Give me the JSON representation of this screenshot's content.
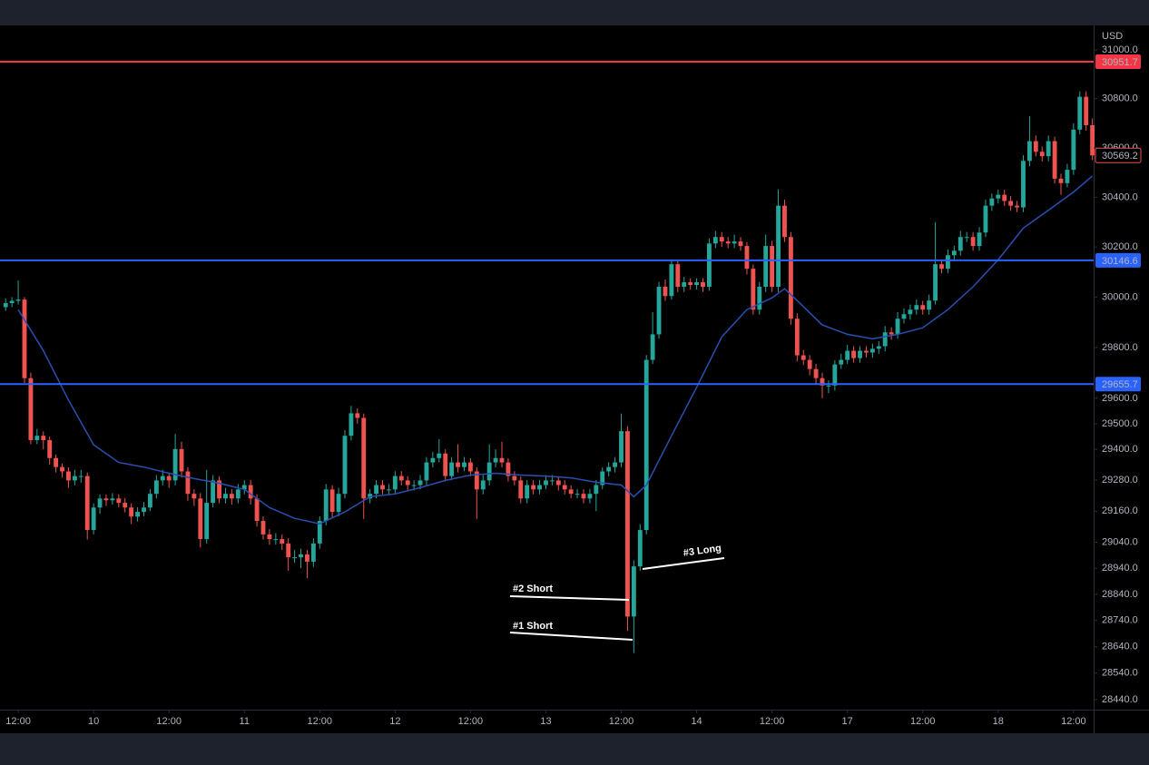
{
  "chart_data": {
    "type": "candlestick",
    "currency": "USD",
    "up_color": "#26a69a",
    "down_color": "#ef5350",
    "log_scale": true,
    "ylim": [
      28402,
      31101
    ],
    "yticks": [
      {
        "value": 31000,
        "label": "31000.0"
      },
      {
        "value": 30800,
        "label": "30800.0"
      },
      {
        "value": 30600,
        "label": "30600.0"
      },
      {
        "value": 30400,
        "label": "30400.0"
      },
      {
        "value": 30200,
        "label": "30200.0"
      },
      {
        "value": 30000,
        "label": "30000.0"
      },
      {
        "value": 29800,
        "label": "29800.0"
      },
      {
        "value": 29600,
        "label": "29600.0"
      },
      {
        "value": 29500,
        "label": "29500.0"
      },
      {
        "value": 29400,
        "label": "29400.0"
      },
      {
        "value": 29280,
        "label": "29280.0"
      },
      {
        "value": 29160,
        "label": "29160.0"
      },
      {
        "value": 29040,
        "label": "29040.0"
      },
      {
        "value": 28940,
        "label": "28940.0"
      },
      {
        "value": 28840,
        "label": "28840.0"
      },
      {
        "value": 28740,
        "label": "28740.0"
      },
      {
        "value": 28640,
        "label": "28640.0"
      },
      {
        "value": 28540,
        "label": "28540.0"
      },
      {
        "value": 28440,
        "label": "28440.0"
      }
    ],
    "xlim": [
      -2.9,
      171.2
    ],
    "xticks": [
      {
        "value": 0,
        "label": "12:00"
      },
      {
        "value": 12,
        "label": "10"
      },
      {
        "value": 24,
        "label": "12:00"
      },
      {
        "value": 36,
        "label": "11"
      },
      {
        "value": 48,
        "label": "12:00"
      },
      {
        "value": 60,
        "label": "12"
      },
      {
        "value": 72,
        "label": "12:00"
      },
      {
        "value": 84,
        "label": "13"
      },
      {
        "value": 96,
        "label": "12:00"
      },
      {
        "value": 108,
        "label": "14"
      },
      {
        "value": 120,
        "label": "12:00"
      },
      {
        "value": 132,
        "label": "17"
      },
      {
        "value": 144,
        "label": "12:00"
      },
      {
        "value": 156,
        "label": "18"
      },
      {
        "value": 168,
        "label": "12:00"
      }
    ],
    "x": [
      -2,
      -1,
      0,
      1,
      2,
      3,
      4,
      5,
      6,
      7,
      8,
      9,
      10,
      11,
      12,
      13,
      14,
      15,
      16,
      17,
      18,
      19,
      20,
      21,
      22,
      23,
      24,
      25,
      26,
      27,
      28,
      29,
      30,
      31,
      32,
      33,
      34,
      35,
      36,
      37,
      38,
      39,
      40,
      41,
      42,
      43,
      44,
      45,
      46,
      47,
      48,
      49,
      50,
      51,
      52,
      53,
      54,
      55,
      56,
      57,
      58,
      59,
      60,
      61,
      62,
      63,
      64,
      65,
      66,
      67,
      68,
      69,
      70,
      71,
      72,
      73,
      74,
      75,
      76,
      77,
      78,
      79,
      80,
      81,
      82,
      83,
      84,
      85,
      86,
      87,
      88,
      89,
      90,
      91,
      92,
      93,
      94,
      95,
      96,
      97,
      98,
      99,
      100,
      101,
      102,
      103,
      104,
      105,
      106,
      107,
      108,
      109,
      110,
      111,
      112,
      113,
      114,
      115,
      116,
      117,
      118,
      119,
      120,
      121,
      122,
      123,
      124,
      125,
      126,
      127,
      128,
      129,
      130,
      131,
      132,
      133,
      134,
      135,
      136,
      137,
      138,
      139,
      140,
      141,
      142,
      143,
      144,
      145,
      146,
      147,
      148,
      149,
      150,
      151,
      152,
      153,
      154,
      155,
      156,
      157,
      158,
      159,
      160,
      161,
      162,
      163,
      164,
      165,
      166,
      167,
      168,
      169,
      170,
      171
    ],
    "candles": [
      [
        29960,
        29995,
        29945,
        29976
      ],
      [
        29976,
        30000,
        29960,
        29985
      ],
      [
        29985,
        30066,
        29970,
        29990
      ],
      [
        29990,
        30000,
        29660,
        29679
      ],
      [
        29679,
        29700,
        29420,
        29436
      ],
      [
        29436,
        29480,
        29420,
        29453
      ],
      [
        29453,
        29470,
        29400,
        29436
      ],
      [
        29436,
        29450,
        29340,
        29366
      ],
      [
        29366,
        29380,
        29310,
        29331
      ],
      [
        29331,
        29345,
        29290,
        29314
      ],
      [
        29314,
        29330,
        29250,
        29279
      ],
      [
        29279,
        29320,
        29260,
        29296
      ],
      [
        29296,
        29320,
        29270,
        29296
      ],
      [
        29296,
        29310,
        29050,
        29087
      ],
      [
        29087,
        29190,
        29070,
        29174
      ],
      [
        29174,
        29225,
        29150,
        29209
      ],
      [
        29209,
        29225,
        29180,
        29202
      ],
      [
        29202,
        29230,
        29185,
        29209
      ],
      [
        29209,
        29225,
        29175,
        29192
      ],
      [
        29192,
        29210,
        29155,
        29174
      ],
      [
        29174,
        29190,
        29110,
        29139
      ],
      [
        29139,
        29175,
        29120,
        29157
      ],
      [
        29157,
        29195,
        29140,
        29174
      ],
      [
        29174,
        29245,
        29160,
        29227
      ],
      [
        29227,
        29300,
        29210,
        29279
      ],
      [
        29279,
        29320,
        29260,
        29296
      ],
      [
        29296,
        29310,
        29250,
        29279
      ],
      [
        29279,
        29460,
        29260,
        29401
      ],
      [
        29401,
        29430,
        29290,
        29314
      ],
      [
        29314,
        29330,
        29200,
        29227
      ],
      [
        29227,
        29245,
        29180,
        29209
      ],
      [
        29209,
        29230,
        29020,
        29052
      ],
      [
        29052,
        29320,
        29035,
        29192
      ],
      [
        29192,
        29300,
        29175,
        29279
      ],
      [
        29279,
        29295,
        29190,
        29209
      ],
      [
        29209,
        29250,
        29190,
        29227
      ],
      [
        29227,
        29245,
        29185,
        29209
      ],
      [
        29209,
        29265,
        29190,
        29244
      ],
      [
        29244,
        29280,
        29225,
        29261
      ],
      [
        29261,
        29280,
        29185,
        29209
      ],
      [
        29209,
        29225,
        29100,
        29122
      ],
      [
        29122,
        29140,
        29050,
        29070
      ],
      [
        29070,
        29090,
        29030,
        29052
      ],
      [
        29052,
        29075,
        29030,
        29052
      ],
      [
        29052,
        29070,
        29010,
        29035
      ],
      [
        29035,
        29055,
        28930,
        28982
      ],
      [
        28982,
        29010,
        28960,
        28982
      ],
      [
        28982,
        29015,
        28940,
        28993
      ],
      [
        28993,
        29010,
        28902,
        28965
      ],
      [
        28965,
        29055,
        28945,
        29035
      ],
      [
        29035,
        29140,
        29015,
        29122
      ],
      [
        29122,
        29265,
        29105,
        29244
      ],
      [
        29244,
        29260,
        29135,
        29157
      ],
      [
        29157,
        29250,
        29140,
        29227
      ],
      [
        29227,
        29475,
        29210,
        29453
      ],
      [
        29453,
        29570,
        29435,
        29541
      ],
      [
        29541,
        29560,
        29500,
        29523
      ],
      [
        29523,
        29540,
        29130,
        29209
      ],
      [
        29209,
        29245,
        29190,
        29227
      ],
      [
        29227,
        29280,
        29210,
        29261
      ],
      [
        29261,
        29280,
        29225,
        29244
      ],
      [
        29244,
        29265,
        29225,
        29244
      ],
      [
        29244,
        29315,
        29225,
        29296
      ],
      [
        29296,
        29315,
        29260,
        29279
      ],
      [
        29279,
        29295,
        29240,
        29261
      ],
      [
        29261,
        29280,
        29240,
        29261
      ],
      [
        29261,
        29300,
        29245,
        29279
      ],
      [
        29279,
        29370,
        29260,
        29349
      ],
      [
        29349,
        29390,
        29330,
        29366
      ],
      [
        29366,
        29440,
        29350,
        29384
      ],
      [
        29384,
        29400,
        29275,
        29296
      ],
      [
        29296,
        29370,
        29280,
        29349
      ],
      [
        29349,
        29420,
        29310,
        29331
      ],
      [
        29331,
        29370,
        29315,
        29349
      ],
      [
        29349,
        29365,
        29295,
        29314
      ],
      [
        29314,
        29330,
        29130,
        29244
      ],
      [
        29244,
        29300,
        29225,
        29279
      ],
      [
        29279,
        29420,
        29260,
        29349
      ],
      [
        29349,
        29400,
        29330,
        29366
      ],
      [
        29366,
        29430,
        29330,
        29349
      ],
      [
        29349,
        29365,
        29275,
        29296
      ],
      [
        29296,
        29315,
        29260,
        29279
      ],
      [
        29279,
        29295,
        29190,
        29209
      ],
      [
        29209,
        29280,
        29190,
        29261
      ],
      [
        29261,
        29280,
        29225,
        29244
      ],
      [
        29244,
        29280,
        29225,
        29261
      ],
      [
        29261,
        29300,
        29245,
        29279
      ],
      [
        29279,
        29300,
        29260,
        29279
      ],
      [
        29279,
        29295,
        29240,
        29261
      ],
      [
        29261,
        29280,
        29225,
        29244
      ],
      [
        29244,
        29260,
        29210,
        29227
      ],
      [
        29227,
        29245,
        29210,
        29227
      ],
      [
        29227,
        29245,
        29190,
        29209
      ],
      [
        29209,
        29245,
        29190,
        29227
      ],
      [
        29227,
        29280,
        29160,
        29261
      ],
      [
        29261,
        29330,
        29245,
        29314
      ],
      [
        29314,
        29350,
        29295,
        29331
      ],
      [
        29331,
        29370,
        29310,
        29349
      ],
      [
        29349,
        29540,
        29330,
        29471
      ],
      [
        29471,
        29490,
        28700,
        28755
      ],
      [
        28755,
        28970,
        28616,
        28947
      ],
      [
        28947,
        29110,
        28930,
        29087
      ],
      [
        29087,
        29770,
        29070,
        29751
      ],
      [
        29751,
        29940,
        29735,
        29852
      ],
      [
        29852,
        30060,
        29835,
        30041
      ],
      [
        30041,
        30070,
        29985,
        30004
      ],
      [
        30004,
        30150,
        29990,
        30131
      ],
      [
        30131,
        30150,
        30020,
        30041
      ],
      [
        30041,
        30080,
        30020,
        30059
      ],
      [
        30059,
        30075,
        30030,
        30048
      ],
      [
        30048,
        30075,
        30030,
        30059
      ],
      [
        30059,
        30075,
        30020,
        30041
      ],
      [
        30041,
        30235,
        30025,
        30214
      ],
      [
        30214,
        30265,
        30195,
        30240
      ],
      [
        30240,
        30260,
        30200,
        30222
      ],
      [
        30222,
        30240,
        30195,
        30214
      ],
      [
        30214,
        30250,
        30195,
        30222
      ],
      [
        30222,
        30240,
        30185,
        30204
      ],
      [
        30204,
        30220,
        30090,
        30113
      ],
      [
        30113,
        30130,
        29930,
        29950
      ],
      [
        29950,
        30060,
        29930,
        30041
      ],
      [
        30041,
        30250,
        30020,
        30204
      ],
      [
        30204,
        30225,
        30020,
        30041
      ],
      [
        30041,
        30432,
        30020,
        30366
      ],
      [
        30366,
        30390,
        30220,
        30240
      ],
      [
        30240,
        30260,
        29890,
        29914
      ],
      [
        29914,
        29935,
        29745,
        29769
      ],
      [
        29769,
        29790,
        29730,
        29751
      ],
      [
        29751,
        29770,
        29690,
        29715
      ],
      [
        29715,
        29735,
        29655,
        29679
      ],
      [
        29679,
        29700,
        29600,
        29650
      ],
      [
        29650,
        29670,
        29620,
        29650
      ],
      [
        29650,
        29750,
        29630,
        29733
      ],
      [
        29733,
        29775,
        29715,
        29751
      ],
      [
        29751,
        29810,
        29735,
        29787
      ],
      [
        29787,
        29805,
        29740,
        29758
      ],
      [
        29758,
        29805,
        29740,
        29787
      ],
      [
        29787,
        29805,
        29760,
        29780
      ],
      [
        29780,
        29815,
        29760,
        29795
      ],
      [
        29795,
        29825,
        29775,
        29805
      ],
      [
        29805,
        29885,
        29785,
        29860
      ],
      [
        29860,
        29880,
        29830,
        29852
      ],
      [
        29852,
        29940,
        29835,
        29914
      ],
      [
        29914,
        29955,
        29895,
        29932
      ],
      [
        29932,
        29970,
        29910,
        29950
      ],
      [
        29950,
        29990,
        29930,
        29968
      ],
      [
        29968,
        29985,
        29930,
        29950
      ],
      [
        29950,
        30010,
        29930,
        29986
      ],
      [
        29986,
        30300,
        29970,
        30131
      ],
      [
        30131,
        30150,
        30095,
        30113
      ],
      [
        30113,
        30190,
        30095,
        30167
      ],
      [
        30167,
        30205,
        30150,
        30185
      ],
      [
        30185,
        30265,
        30165,
        30240
      ],
      [
        30240,
        30260,
        30220,
        30240
      ],
      [
        30240,
        30260,
        30185,
        30204
      ],
      [
        30204,
        30280,
        30185,
        30258
      ],
      [
        30258,
        30390,
        30240,
        30366
      ],
      [
        30366,
        30415,
        30345,
        30395
      ],
      [
        30395,
        30430,
        30375,
        30410
      ],
      [
        30410,
        30430,
        30365,
        30385
      ],
      [
        30385,
        30405,
        30345,
        30366
      ],
      [
        30366,
        30385,
        30340,
        30359
      ],
      [
        30359,
        30570,
        30340,
        30547
      ],
      [
        30547,
        30729,
        30525,
        30627
      ],
      [
        30627,
        30650,
        30565,
        30584
      ],
      [
        30584,
        30605,
        30545,
        30566
      ],
      [
        30566,
        30650,
        30545,
        30627
      ],
      [
        30627,
        30645,
        30455,
        30475
      ],
      [
        30475,
        30495,
        30410,
        30457
      ],
      [
        30457,
        30535,
        30440,
        30511
      ],
      [
        30511,
        30700,
        30490,
        30674
      ],
      [
        30674,
        30830,
        30655,
        30808
      ],
      [
        30808,
        30830,
        30670,
        30692
      ],
      [
        30692,
        30720,
        30550,
        30569.2
      ]
    ],
    "moving_average": {
      "color": "#2a4fb0",
      "x": [
        0,
        4,
        8,
        12,
        16,
        20,
        24,
        28,
        32,
        36,
        40,
        44,
        48,
        52,
        56,
        60,
        64,
        68,
        72,
        76,
        80,
        84,
        88,
        92,
        96,
        98,
        100,
        104,
        108,
        112,
        116,
        120,
        122,
        124,
        128,
        132,
        136,
        140,
        144,
        148,
        152,
        156,
        160,
        164,
        168,
        171
      ],
      "values": [
        29950,
        29787,
        29593,
        29418,
        29349,
        29331,
        29307,
        29286,
        29268,
        29244,
        29174,
        29132,
        29111,
        29157,
        29216,
        29227,
        29251,
        29279,
        29300,
        29307,
        29300,
        29296,
        29289,
        29272,
        29261,
        29216,
        29261,
        29453,
        29643,
        29842,
        29950,
        29997,
        30033,
        29986,
        29889,
        29852,
        29834,
        29852,
        29878,
        29950,
        30041,
        30149,
        30276,
        30348,
        30421,
        30486
      ]
    },
    "levels": [
      {
        "value": 30951.7,
        "color": "#f23645"
      },
      {
        "value": 30146.6,
        "color": "#2962ff"
      },
      {
        "value": 29655.7,
        "color": "#2962ff"
      }
    ],
    "annotations": [
      "#2 Short",
      "#1 Short",
      "#3 Long"
    ]
  }
}
